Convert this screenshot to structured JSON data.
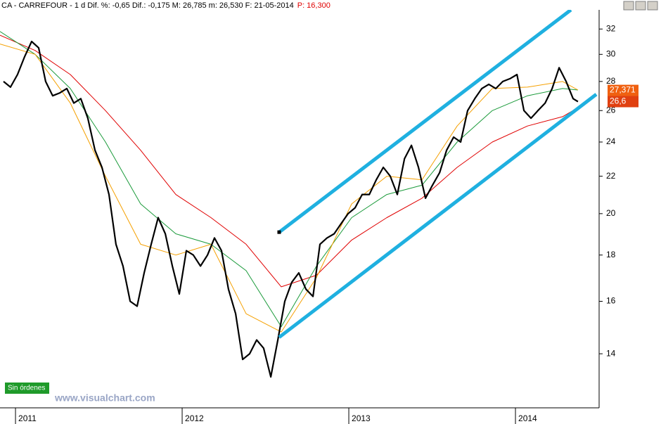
{
  "chart_data": {
    "type": "line",
    "title": "CA - CARREFOUR - 1 d Dif. %: -0,65 Dif.: -0,175 M: 26,785 m: 26,530 F: 21-05-2014",
    "price_label": "P: 16,300",
    "log_scale": true,
    "xlim": [
      2010.907,
      2014.502
    ],
    "xticks": [
      2011,
      2012,
      2013,
      2014
    ],
    "ylim": [
      12.2,
      33.6
    ],
    "yticks": [
      14,
      16,
      18,
      20,
      22,
      24,
      26,
      28,
      30,
      32
    ],
    "series": [
      {
        "color": "#000000",
        "width": 2.2,
        "x": [
          2010.928,
          2010.97,
          2011.012,
          2011.054,
          2011.097,
          2011.139,
          2011.181,
          2011.223,
          2011.266,
          2011.308,
          2011.35,
          2011.392,
          2011.434,
          2011.477,
          2011.519,
          2011.561,
          2011.603,
          2011.645,
          2011.688,
          2011.73,
          2011.772,
          2011.814,
          2011.856,
          2011.899,
          2011.941,
          2011.983,
          2012.025,
          2012.067,
          2012.11,
          2012.152,
          2012.194,
          2012.236,
          2012.278,
          2012.321,
          2012.363,
          2012.405,
          2012.447,
          2012.489,
          2012.532,
          2012.574,
          2012.616,
          2012.658,
          2012.7,
          2012.743,
          2012.785,
          2012.827,
          2012.869,
          2012.912,
          2012.954,
          2012.996,
          2013.038,
          2013.08,
          2013.123,
          2013.165,
          2013.207,
          2013.249,
          2013.291,
          2013.334,
          2013.376,
          2013.418,
          2013.46,
          2013.502,
          2013.545,
          2013.587,
          2013.629,
          2013.671,
          2013.713,
          2013.756,
          2013.798,
          2013.84,
          2013.882,
          2013.924,
          2013.967,
          2014.009,
          2014.051,
          2014.093,
          2014.135,
          2014.178,
          2014.22,
          2014.262,
          2014.304,
          2014.346,
          2014.375
        ],
        "values": [
          28.0,
          27.6,
          28.5,
          29.8,
          31.0,
          30.5,
          28.0,
          27.0,
          27.2,
          27.5,
          26.5,
          26.8,
          25.5,
          23.5,
          22.5,
          21.0,
          18.5,
          17.5,
          16.0,
          15.8,
          17.2,
          18.5,
          19.8,
          19.0,
          17.5,
          16.3,
          18.2,
          18.0,
          17.5,
          18.0,
          18.8,
          18.2,
          16.5,
          15.5,
          13.8,
          14.0,
          14.5,
          14.2,
          13.2,
          14.5,
          16.0,
          16.8,
          17.2,
          16.5,
          16.2,
          18.5,
          18.8,
          19.0,
          19.5,
          20.0,
          20.3,
          21.0,
          21.0,
          21.8,
          22.5,
          22.0,
          21.0,
          23.0,
          23.8,
          22.5,
          20.8,
          21.5,
          22.2,
          23.5,
          24.3,
          24.0,
          26.0,
          26.8,
          27.5,
          27.8,
          27.5,
          28.0,
          28.2,
          28.5,
          26.0,
          25.5,
          26.0,
          26.5,
          27.5,
          29.0,
          28.0,
          26.8,
          26.6
        ]
      },
      {
        "color": "#f5a000",
        "width": 1,
        "x": [
          2010.907,
          2011.118,
          2011.329,
          2011.54,
          2011.751,
          2011.962,
          2012.173,
          2012.384,
          2012.595,
          2012.806,
          2013.017,
          2013.228,
          2013.439,
          2013.65,
          2013.861,
          2014.072,
          2014.283,
          2014.375
        ],
        "values": [
          30.8,
          30.0,
          26.5,
          22.0,
          18.5,
          18.0,
          18.5,
          15.5,
          14.8,
          17.0,
          20.5,
          22.0,
          21.8,
          25.0,
          27.5,
          27.6,
          28.0,
          27.4
        ]
      },
      {
        "color": "#1a9a3a",
        "width": 1,
        "x": [
          2010.907,
          2011.118,
          2011.329,
          2011.54,
          2011.751,
          2011.962,
          2012.173,
          2012.384,
          2012.595,
          2012.806,
          2013.017,
          2013.228,
          2013.439,
          2013.65,
          2013.861,
          2014.072,
          2014.283,
          2014.375
        ],
        "values": [
          31.8,
          30.0,
          27.5,
          24.0,
          20.5,
          19.0,
          18.5,
          17.3,
          15.0,
          17.5,
          19.8,
          21.0,
          21.5,
          24.0,
          26.0,
          27.0,
          27.5,
          27.4
        ]
      },
      {
        "color": "#e00000",
        "width": 1,
        "x": [
          2010.907,
          2011.118,
          2011.329,
          2011.54,
          2011.751,
          2011.962,
          2012.173,
          2012.384,
          2012.595,
          2012.806,
          2013.017,
          2013.228,
          2013.439,
          2013.65,
          2013.861,
          2014.072,
          2014.283,
          2014.375
        ],
        "values": [
          31.5,
          30.3,
          28.5,
          26.0,
          23.5,
          21.0,
          19.8,
          18.5,
          16.6,
          17.1,
          18.7,
          19.8,
          20.8,
          22.5,
          24.0,
          25.0,
          25.6,
          26.2
        ]
      }
    ],
    "channels": [
      {
        "color": "#1fb0e0",
        "x": [
          2012.582,
          2014.333
        ],
        "values": [
          19.08,
          33.6
        ]
      },
      {
        "color": "#1fb0e0",
        "x": [
          2012.582,
          2014.485
        ],
        "values": [
          14.6,
          27.1
        ]
      }
    ],
    "last_labels": [
      {
        "value": 27.371,
        "label": "27,371",
        "color": "#f06010"
      },
      {
        "value": 26.6,
        "label": "26,6",
        "color": "#e04010"
      }
    ],
    "status": "Sin órdenes",
    "watermark": "www.visualchart.com"
  }
}
